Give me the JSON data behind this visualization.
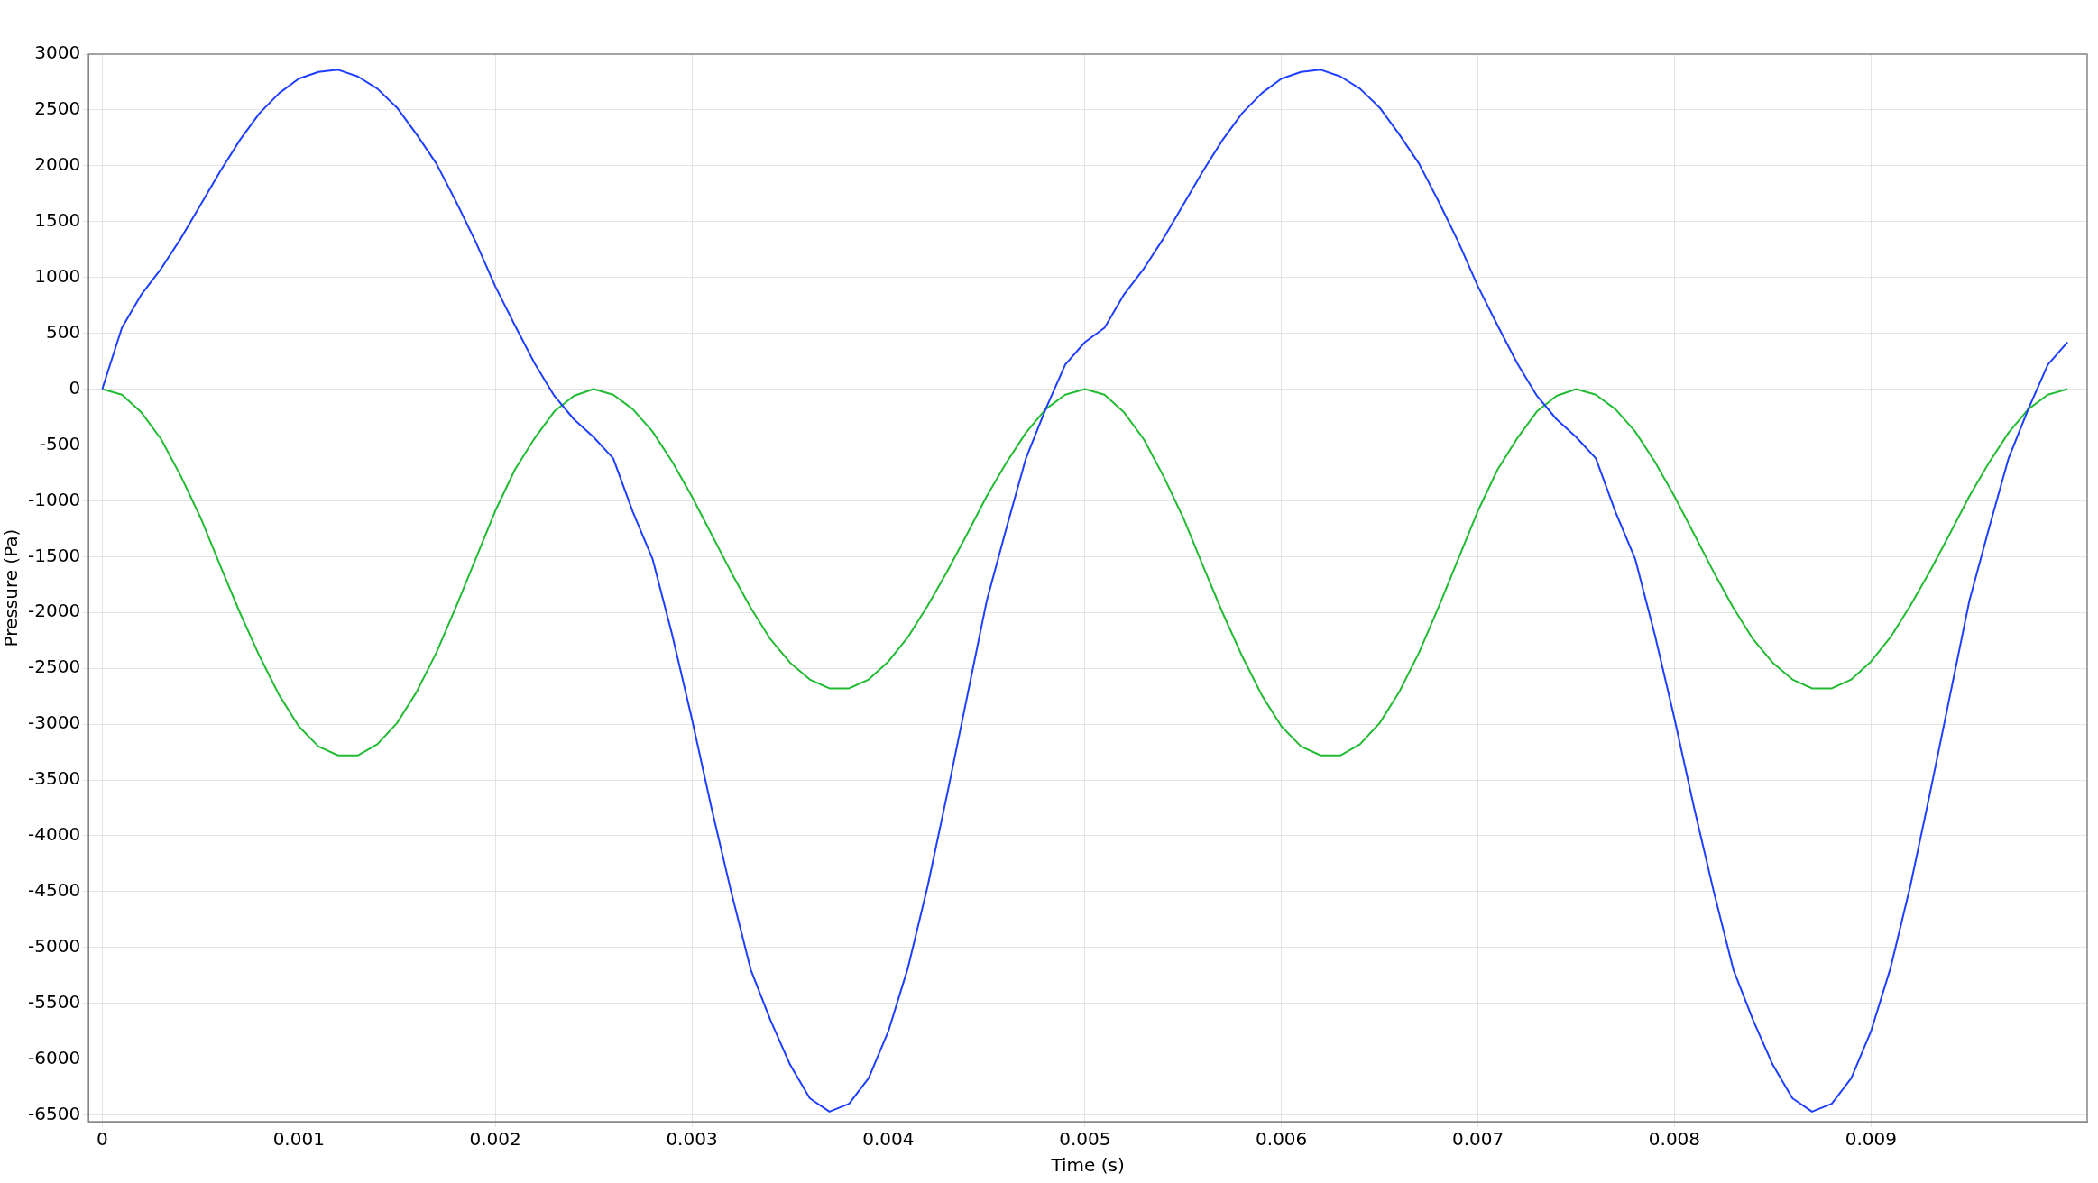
{
  "chart_data": {
    "type": "line",
    "xlabel": "Time (s)",
    "ylabel": "Pressure (Pa)",
    "x": [
      0,
      0.0001,
      0.0002,
      0.0003,
      0.0004,
      0.0005,
      0.0006,
      0.0007,
      0.0008,
      0.0009,
      0.001,
      0.0011,
      0.0012,
      0.0013,
      0.0014,
      0.0015,
      0.0016,
      0.0017,
      0.0018,
      0.0019,
      0.002,
      0.0021,
      0.0022,
      0.0023,
      0.0024,
      0.0025,
      0.0026,
      0.0027,
      0.0028,
      0.0029,
      0.003,
      0.0031,
      0.0032,
      0.0033,
      0.0034,
      0.0035,
      0.0036,
      0.0037,
      0.0038,
      0.0039,
      0.004,
      0.0041,
      0.0042,
      0.0043,
      0.0044,
      0.0045,
      0.0046,
      0.0047,
      0.0048,
      0.0049,
      0.005,
      0.0051,
      0.0052,
      0.0053,
      0.0054,
      0.0055,
      0.0056,
      0.0057,
      0.0058,
      0.0059,
      0.006,
      0.0061,
      0.0062,
      0.0063,
      0.0064,
      0.0065,
      0.0066,
      0.0067,
      0.0068,
      0.0069,
      0.007,
      0.0071,
      0.0072,
      0.0073,
      0.0074,
      0.0075,
      0.0076,
      0.0077,
      0.0078,
      0.0079,
      0.008,
      0.0081,
      0.0082,
      0.0083,
      0.0084,
      0.0085,
      0.0086,
      0.0087,
      0.0088,
      0.0089,
      0.009,
      0.0091,
      0.0092,
      0.0093,
      0.0094,
      0.0095,
      0.0096,
      0.0097,
      0.0098,
      0.0099,
      0.01
    ],
    "series": [
      {
        "color": "#1f3fff",
        "values": [
          0,
          550,
          850,
          1080,
          1350,
          1650,
          1950,
          2230,
          2470,
          2650,
          2780,
          2840,
          2860,
          2800,
          2690,
          2520,
          2280,
          2020,
          1680,
          1320,
          920,
          570,
          230,
          -60,
          -270,
          -430,
          -620,
          -1100,
          -1520,
          -2200,
          -2950,
          -3750,
          -4500,
          -5200,
          -5650,
          -6050,
          -6350,
          -6470,
          -6400,
          -6170,
          -5750,
          -5180,
          -4450,
          -3620,
          -2760,
          -1900,
          -1250,
          -620,
          -180,
          220,
          420,
          550,
          850,
          1080,
          1350,
          1650,
          1950,
          2230,
          2470,
          2650,
          2780,
          2840,
          2860,
          2800,
          2690,
          2520,
          2280,
          2020,
          1680,
          1320,
          920,
          570,
          230,
          -60,
          -270,
          -430,
          -620,
          -1100,
          -1520,
          -2200,
          -2950,
          -3750,
          -4500,
          -5200,
          -5650,
          -6050,
          -6350,
          -6470,
          -6400,
          -6170,
          -5750,
          -5180,
          -4450,
          -3620,
          -2760,
          -1900,
          -1250,
          -620,
          -180,
          220,
          420
        ]
      },
      {
        "color": "#22bb33",
        "values": [
          0,
          -50,
          -210,
          -450,
          -780,
          -1150,
          -1580,
          -2000,
          -2390,
          -2740,
          -3020,
          -3200,
          -3280,
          -3280,
          -3180,
          -2990,
          -2710,
          -2360,
          -1950,
          -1520,
          -1090,
          -720,
          -440,
          -200,
          -60,
          0,
          -50,
          -180,
          -380,
          -650,
          -960,
          -1300,
          -1640,
          -1960,
          -2240,
          -2450,
          -2600,
          -2680,
          -2680,
          -2600,
          -2440,
          -2220,
          -1940,
          -1630,
          -1300,
          -960,
          -660,
          -390,
          -180,
          -50,
          0,
          -50,
          -210,
          -450,
          -780,
          -1150,
          -1580,
          -2000,
          -2390,
          -2740,
          -3020,
          -3200,
          -3280,
          -3280,
          -3180,
          -2990,
          -2710,
          -2360,
          -1950,
          -1520,
          -1090,
          -720,
          -440,
          -200,
          -60,
          0,
          -50,
          -180,
          -380,
          -650,
          -960,
          -1300,
          -1640,
          -1960,
          -2240,
          -2450,
          -2600,
          -2680,
          -2680,
          -2600,
          -2440,
          -2220,
          -1940,
          -1630,
          -1300,
          -960,
          -660,
          -390,
          -180,
          -50,
          0
        ]
      }
    ],
    "xlim": [
      -7e-05,
      0.0101
    ],
    "xticks": [
      0,
      0.001,
      0.002,
      0.003,
      0.004,
      0.005,
      0.006,
      0.007,
      0.008,
      0.009
    ],
    "ylim": [
      -6560,
      3000
    ],
    "yticks": [
      -6500,
      -6000,
      -5500,
      -5000,
      -4500,
      -4000,
      -3500,
      -3000,
      -2500,
      -2000,
      -1500,
      -1000,
      -500,
      0,
      500,
      1000,
      1500,
      2000,
      2500,
      3000
    ],
    "grid": true,
    "legend": false,
    "marker": "none",
    "line_style": "solid"
  }
}
